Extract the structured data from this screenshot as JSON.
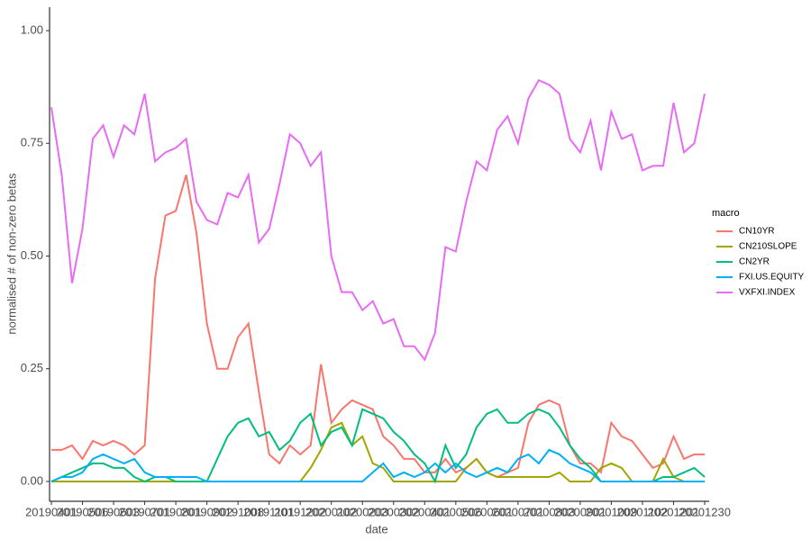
{
  "chart_data": {
    "type": "line",
    "x_label": "date",
    "y_label": "normalised # of non-zero betas",
    "legend_title": "macro",
    "legend_position": "right",
    "categories": [
      "20190401",
      null,
      null,
      "20190506",
      null,
      null,
      "20190603",
      null,
      null,
      "20190701",
      null,
      null,
      "20190801",
      null,
      null,
      "20190902",
      null,
      null,
      "20191008",
      null,
      null,
      "20191101",
      null,
      null,
      "20191202",
      null,
      null,
      "20200102",
      null,
      null,
      "20200203",
      null,
      null,
      "20200302",
      null,
      null,
      "20200401",
      null,
      null,
      "20200506",
      null,
      null,
      "20200601",
      null,
      null,
      "20200701",
      null,
      null,
      "20200803",
      null,
      null,
      "20200901",
      null,
      null,
      "20201009",
      null,
      null,
      "20201102",
      null,
      null,
      "20201201",
      null,
      null,
      "20201230"
    ],
    "ylim": [
      -0.044,
      1.052
    ],
    "yticks": [
      {
        "value": 0,
        "label": "0.00"
      },
      0.25,
      {
        "value": 0.5,
        "label": "0.50"
      },
      0.75,
      {
        "value": 1,
        "label": "1.00"
      }
    ],
    "series": [
      {
        "name": "CN10YR",
        "color": "#F8766D",
        "values": [
          0.07,
          0.07,
          0.08,
          0.05,
          0.09,
          0.08,
          0.09,
          0.08,
          0.06,
          0.08,
          0.45,
          0.59,
          0.6,
          0.68,
          0.55,
          0.35,
          0.25,
          0.25,
          0.32,
          0.35,
          0.2,
          0.06,
          0.04,
          0.08,
          0.06,
          0.08,
          0.26,
          0.13,
          0.16,
          0.18,
          0.17,
          0.16,
          0.1,
          0.08,
          0.05,
          0.05,
          0.02,
          0.02,
          0.05,
          0.02,
          0.03,
          0.05,
          0.02,
          0.01,
          0.02,
          0.03,
          0.13,
          0.17,
          0.18,
          0.17,
          0.08,
          0.04,
          0.04,
          0.02,
          0.13,
          0.1,
          0.09,
          0.06,
          0.03,
          0.04,
          0.1,
          0.05,
          0.06,
          0.06
        ]
      },
      {
        "name": "CN210SLOPE",
        "color": "#A3A500",
        "values": [
          0,
          0,
          0,
          0,
          0,
          0,
          0,
          0,
          0,
          0,
          0,
          0,
          0,
          0,
          0,
          0,
          0,
          0,
          0,
          0,
          0,
          0,
          0,
          0,
          0,
          0.03,
          0.07,
          0.12,
          0.13,
          0.08,
          0.1,
          0.04,
          0.03,
          0,
          0,
          0,
          0,
          0,
          0,
          0,
          0.03,
          0.05,
          0.02,
          0.01,
          0.01,
          0.01,
          0.01,
          0.01,
          0.01,
          0.02,
          0,
          0,
          0,
          0.03,
          0.04,
          0.03,
          0,
          0,
          0,
          0.05,
          0.01,
          0,
          0,
          0
        ]
      },
      {
        "name": "CN2YR",
        "color": "#00BF7D",
        "values": [
          0,
          0.01,
          0.02,
          0.03,
          0.04,
          0.04,
          0.03,
          0.03,
          0.01,
          0,
          0.01,
          0.01,
          0,
          0,
          0,
          0,
          0.05,
          0.1,
          0.13,
          0.14,
          0.1,
          0.11,
          0.07,
          0.09,
          0.13,
          0.15,
          0.08,
          0.11,
          0.12,
          0.08,
          0.16,
          0.15,
          0.14,
          0.11,
          0.09,
          0.06,
          0.04,
          0,
          0.08,
          0.03,
          0.06,
          0.12,
          0.15,
          0.16,
          0.13,
          0.13,
          0.15,
          0.16,
          0.15,
          0.12,
          0.08,
          0.05,
          0.03,
          0,
          0,
          0,
          0,
          0,
          0,
          0.01,
          0.01,
          0.02,
          0.03,
          0.01
        ]
      },
      {
        "name": "FXI.US.EQUITY",
        "color": "#00B0F6",
        "values": [
          0,
          0.01,
          0.01,
          0.02,
          0.05,
          0.06,
          0.05,
          0.04,
          0.05,
          0.02,
          0.01,
          0.01,
          0.01,
          0.01,
          0.01,
          0,
          0,
          0,
          0,
          0,
          0,
          0,
          0,
          0,
          0,
          0,
          0,
          0,
          0,
          0,
          0,
          0.02,
          0.04,
          0.01,
          0.02,
          0.01,
          0.02,
          0.04,
          0.02,
          0.04,
          0.02,
          0.01,
          0.02,
          0.03,
          0.02,
          0.05,
          0.06,
          0.04,
          0.07,
          0.06,
          0.04,
          0.03,
          0.02,
          0,
          0,
          0,
          0,
          0,
          0,
          0,
          0,
          0,
          0,
          0
        ]
      },
      {
        "name": "VXFXI.INDEX",
        "color": "#E76BF3",
        "values": [
          0.83,
          0.68,
          0.44,
          0.56,
          0.76,
          0.79,
          0.72,
          0.79,
          0.77,
          0.86,
          0.71,
          0.73,
          0.74,
          0.76,
          0.62,
          0.58,
          0.57,
          0.64,
          0.63,
          0.68,
          0.53,
          0.56,
          0.66,
          0.77,
          0.75,
          0.7,
          0.73,
          0.5,
          0.42,
          0.42,
          0.38,
          0.4,
          0.35,
          0.36,
          0.3,
          0.3,
          0.27,
          0.33,
          0.52,
          0.51,
          0.62,
          0.71,
          0.69,
          0.78,
          0.81,
          0.75,
          0.85,
          0.89,
          0.88,
          0.86,
          0.76,
          0.73,
          0.8,
          0.69,
          0.82,
          0.76,
          0.77,
          0.69,
          0.7,
          0.7,
          0.84,
          0.73,
          0.75,
          0.86
        ]
      }
    ]
  }
}
